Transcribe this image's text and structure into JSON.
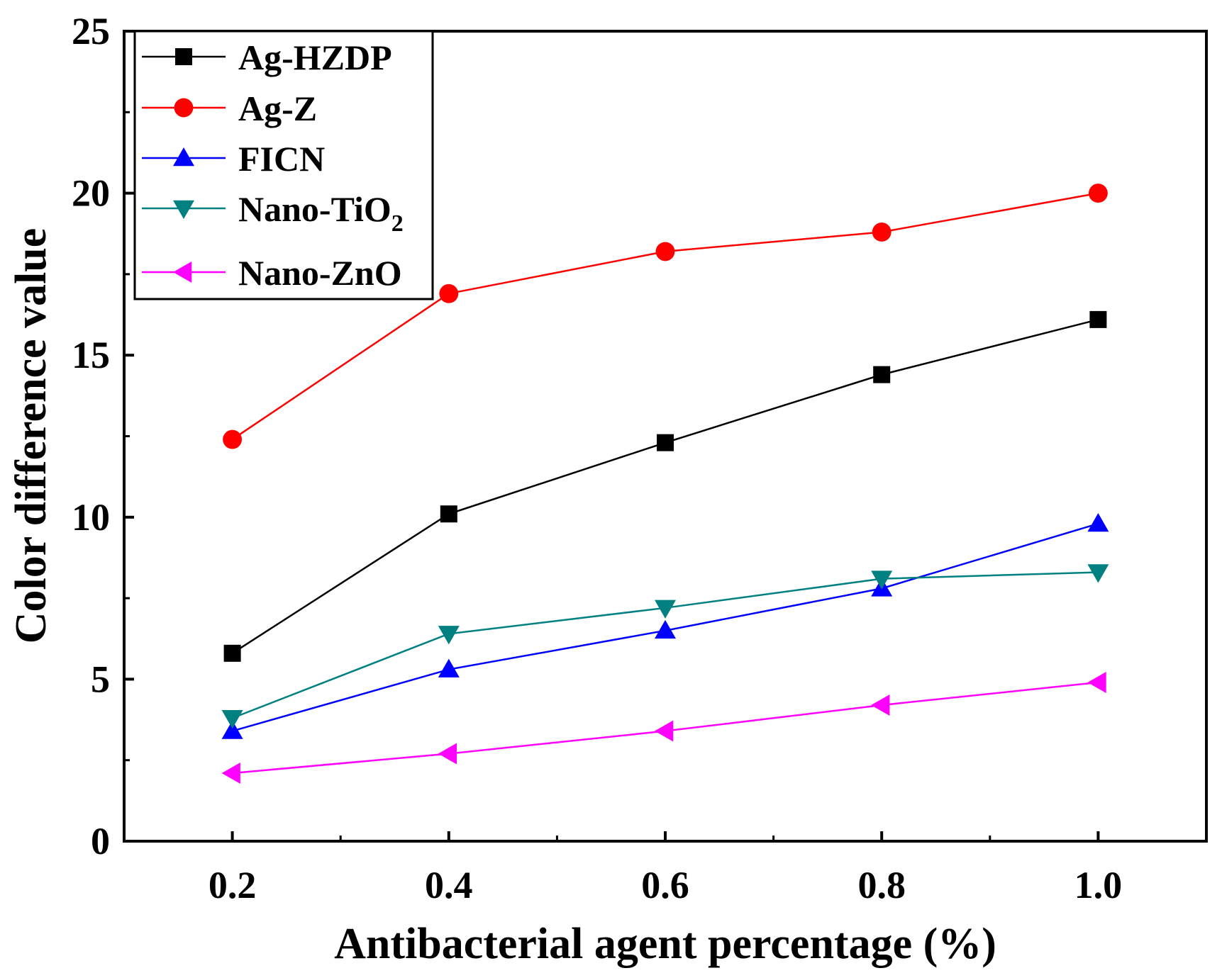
{
  "chart_data": {
    "type": "line",
    "xlabel": "Antibacterial agent percentage (%)",
    "ylabel": "Color difference value",
    "x": [
      0.2,
      0.4,
      0.6,
      0.8,
      1.0
    ],
    "xlim": [
      0.1,
      1.1
    ],
    "ylim": [
      0,
      25
    ],
    "xticks": [
      "0.2",
      "0.4",
      "0.6",
      "0.8",
      "1.0"
    ],
    "yticks": [
      "0",
      "5",
      "10",
      "15",
      "20",
      "25"
    ],
    "grid": false,
    "legend_position": "top-left",
    "series": [
      {
        "name": "Ag-HZDP",
        "color": "#000000",
        "marker": "square",
        "values": [
          5.8,
          10.1,
          12.3,
          14.4,
          16.1
        ]
      },
      {
        "name": "Ag-Z",
        "color": "#ff0000",
        "marker": "circle",
        "values": [
          12.4,
          16.9,
          18.2,
          18.8,
          20.0
        ]
      },
      {
        "name": "FICN",
        "color": "#0000ff",
        "marker": "triangle-up",
        "values": [
          3.4,
          5.3,
          6.5,
          7.8,
          9.8
        ]
      },
      {
        "name": "Nano-TiO",
        "name_subscript": "2",
        "color": "#008080",
        "marker": "triangle-down",
        "values": [
          3.8,
          6.4,
          7.2,
          8.1,
          8.3
        ]
      },
      {
        "name": "Nano-ZnO",
        "color": "#ff00ff",
        "marker": "triangle-left",
        "values": [
          2.1,
          2.7,
          3.4,
          4.2,
          4.9
        ]
      }
    ]
  }
}
